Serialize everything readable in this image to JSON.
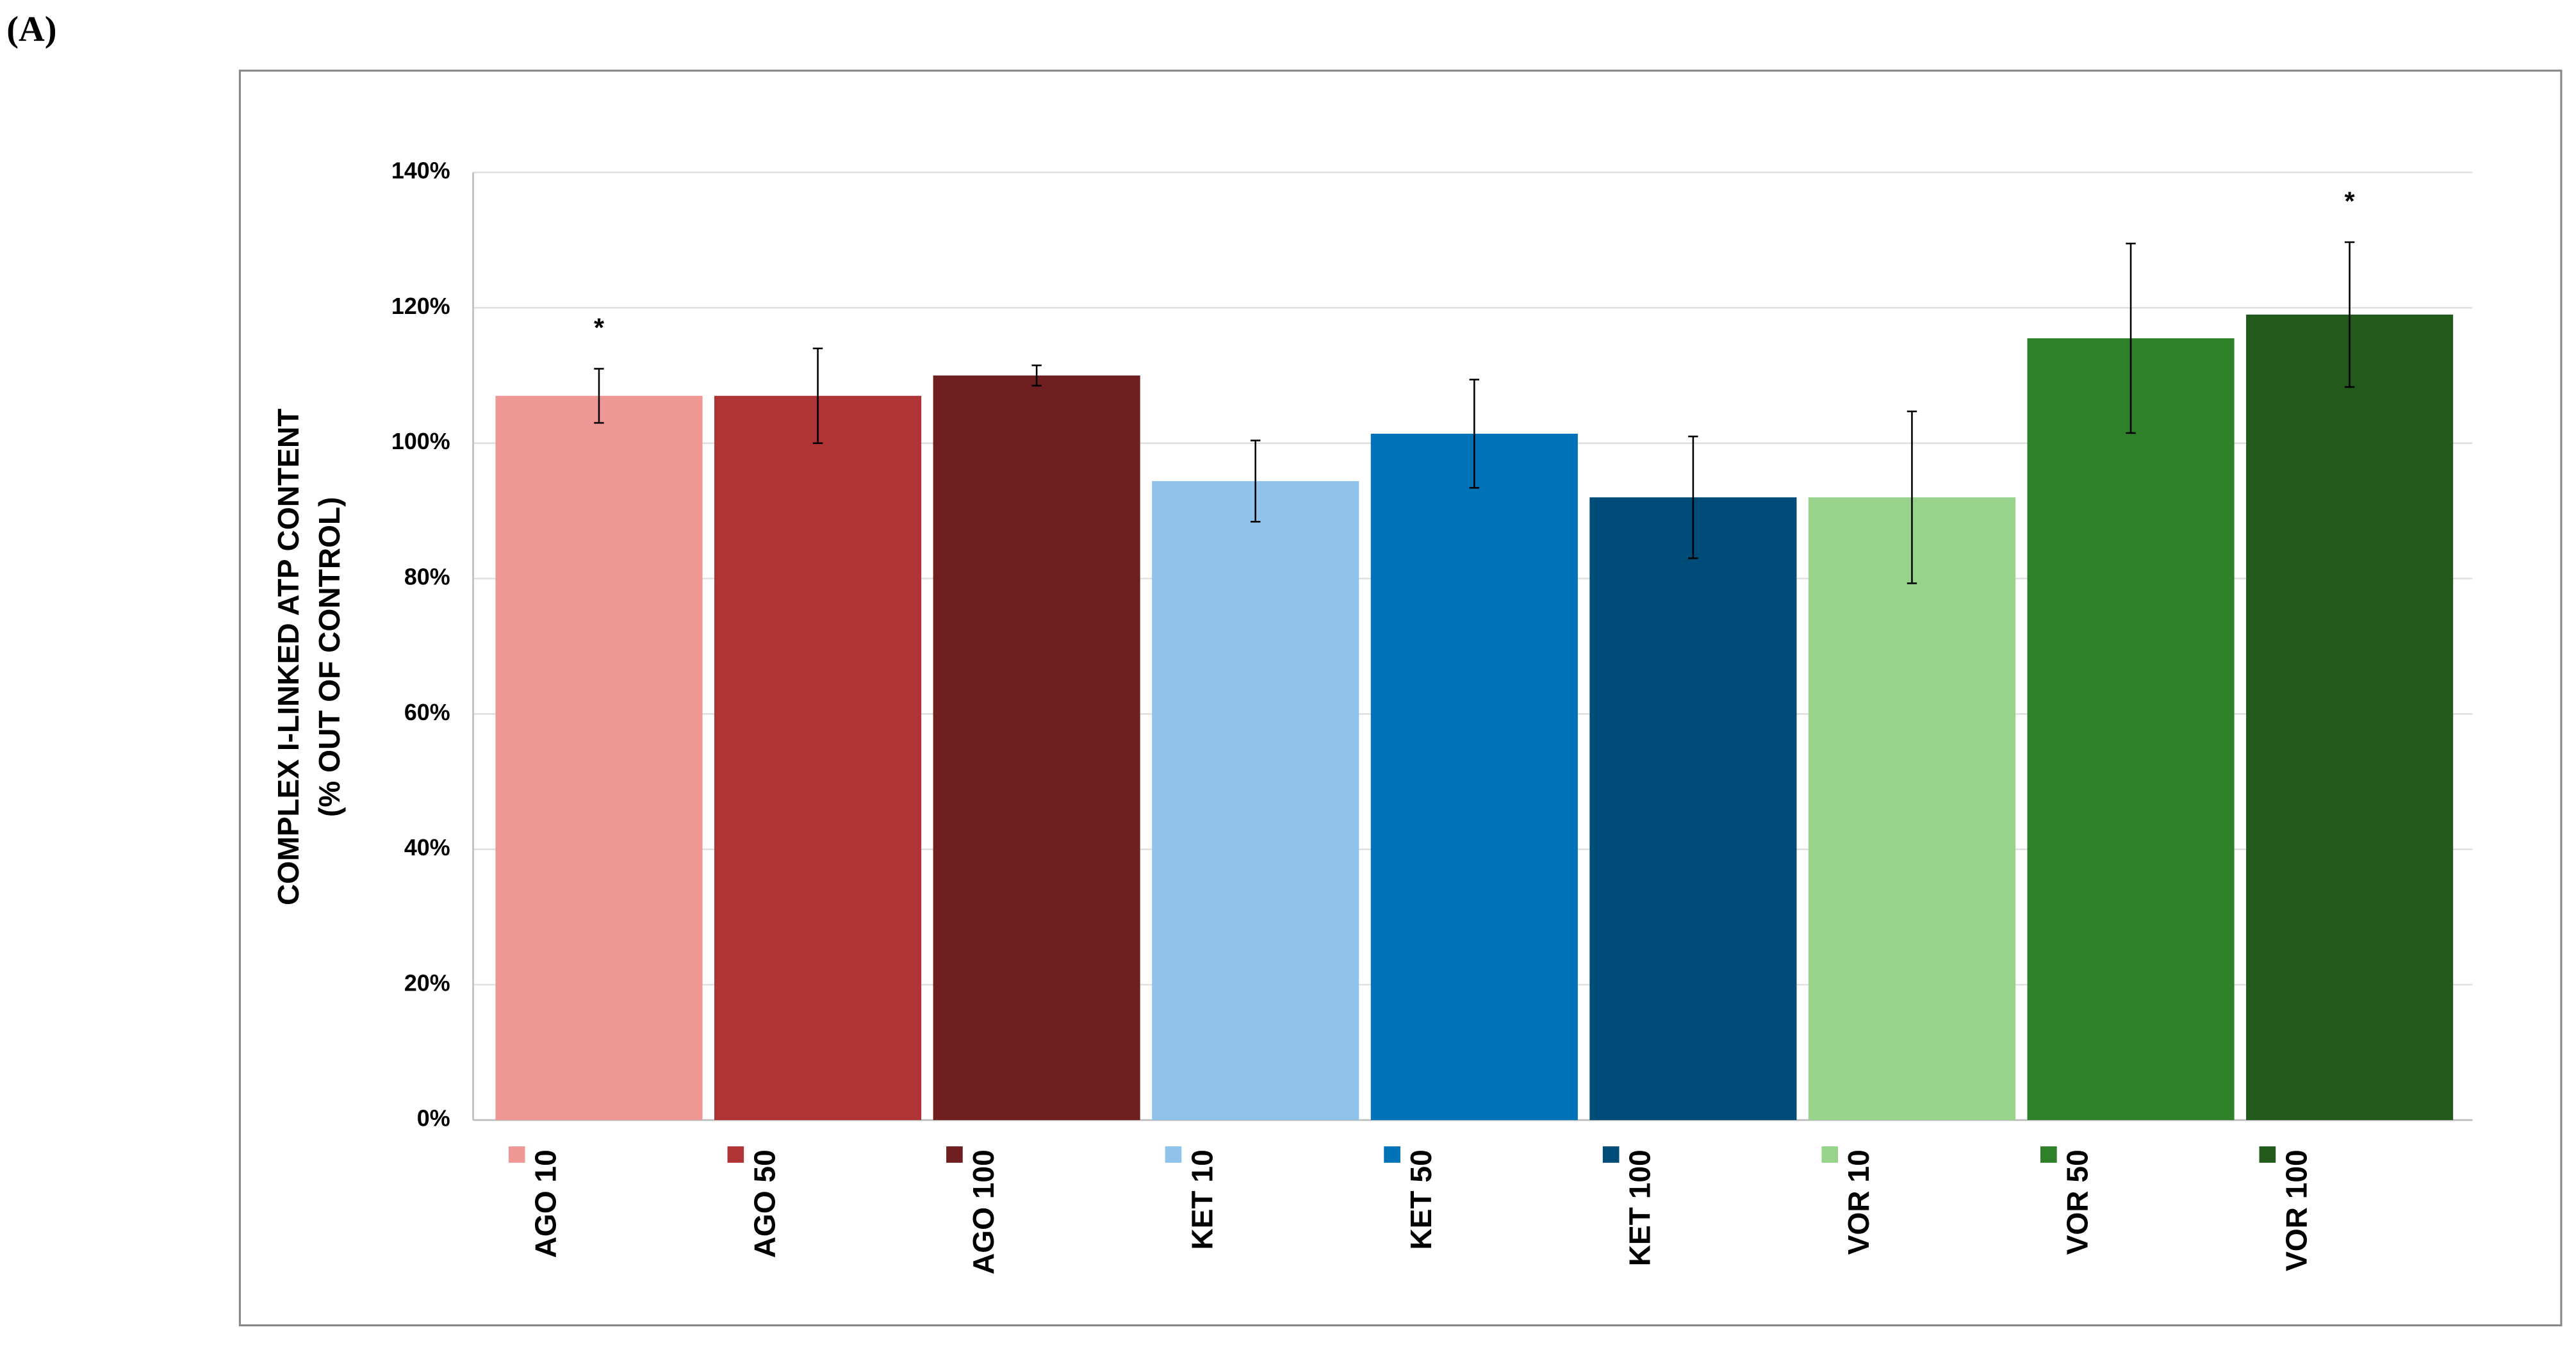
{
  "panel_label": "(A)",
  "chart_data": {
    "type": "bar",
    "ylabel": [
      "COMPLEX I-LINKED ATP CONTENT",
      "(% OUT OF CONTROL)"
    ],
    "categories": [
      "AGO 10",
      "AGO 50",
      "AGO 100",
      "KET 10",
      "KET 50",
      "KET 100",
      "VOR 10",
      "VOR 50",
      "VOR 100"
    ],
    "values": [
      107,
      107,
      110,
      94.4,
      101.4,
      92,
      92,
      115.5,
      119
    ],
    "errors": [
      4,
      7,
      1.5,
      6,
      8,
      9,
      12.7,
      14,
      10.7
    ],
    "markers": [
      "*",
      null,
      null,
      null,
      null,
      null,
      null,
      null,
      "*"
    ],
    "colors": [
      "#ee9794",
      "#ae3435",
      "#6f1f20",
      "#8fc3e9",
      "#0072b8",
      "#004c78",
      "#97d38b",
      "#2f8129",
      "#215a1b"
    ],
    "ylim": [
      0,
      140
    ],
    "yticks": [
      {
        "value": 0,
        "label": "0%"
      },
      {
        "value": 20,
        "label": "20%"
      },
      {
        "value": 40,
        "label": "40%"
      },
      {
        "value": 60,
        "label": "60%"
      },
      {
        "value": 80,
        "label": "80%"
      },
      {
        "value": 100,
        "label": "100%"
      },
      {
        "value": 120,
        "label": "120%"
      },
      {
        "value": 140,
        "label": "140%"
      }
    ],
    "grid": true
  }
}
